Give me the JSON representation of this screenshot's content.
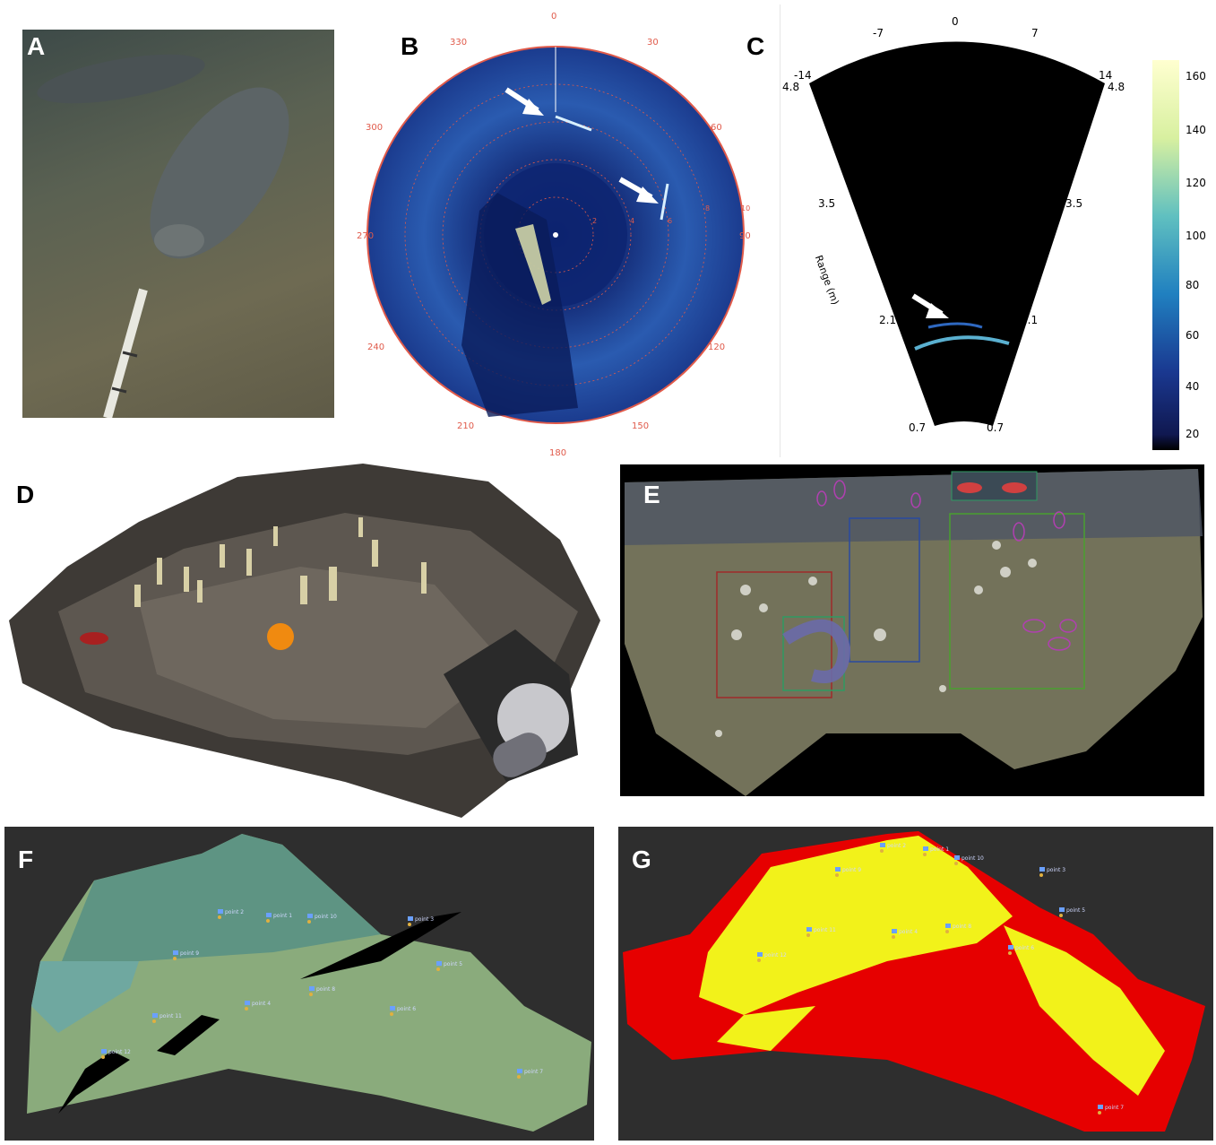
{
  "panels": {
    "a": {
      "letter": "A"
    },
    "b": {
      "letter": "B",
      "bearings": [
        "0",
        "30",
        "60",
        "90",
        "120",
        "150",
        "180",
        "210",
        "240",
        "270",
        "300",
        "330"
      ],
      "ring_labels": [
        "2",
        "4",
        "6",
        "8",
        "10"
      ]
    },
    "c": {
      "letter": "C",
      "top_ticks": [
        "-14",
        "-7",
        "0",
        "7",
        "14"
      ],
      "corner_left": "4.8",
      "corner_right": "4.8",
      "range_left": [
        "3.5",
        "2.1",
        "0.7"
      ],
      "range_right": [
        "3.5",
        "2.1",
        "0.7"
      ],
      "range_axis_label": "Range (m)",
      "colorbar_ticks": [
        "160",
        "140",
        "120",
        "100",
        "80",
        "60",
        "40",
        "20"
      ]
    },
    "d": {
      "letter": "D"
    },
    "e": {
      "letter": "E"
    },
    "f": {
      "letter": "F",
      "points": [
        "point 2",
        "point 1",
        "point 10",
        "point 3",
        "point 9",
        "point 5",
        "point 8",
        "point 4",
        "point 6",
        "point 11",
        "point 12",
        "point 7"
      ]
    },
    "g": {
      "letter": "G",
      "points": [
        "point 2",
        "point 1",
        "point 10",
        "point 3",
        "point 9",
        "point 5",
        "point 8",
        "point 4",
        "point 6",
        "point 11",
        "point 12",
        "point 7"
      ]
    }
  },
  "colors": {
    "sonar_blue": "#1a3a8c",
    "sonar_ring": "#e05a4a",
    "terrain_red": "#e60000",
    "terrain_yellow": "#f2f21a",
    "map_background": "#2e2e2e"
  }
}
